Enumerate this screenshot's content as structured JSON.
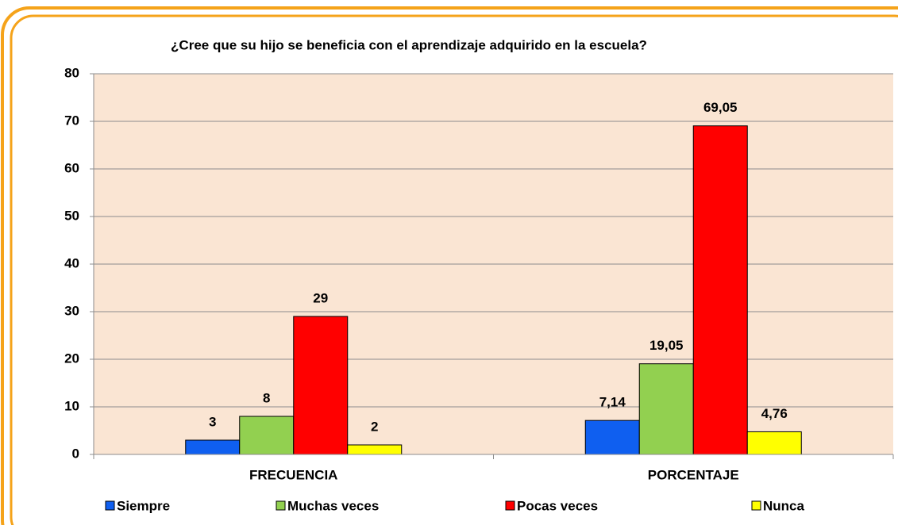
{
  "chart_data": {
    "type": "bar",
    "title": "¿Cree que su hijo se beneficia con el aprendizaje  adquirido en la escuela?",
    "categories": [
      "FRECUENCIA",
      "PORCENTAJE"
    ],
    "series": [
      {
        "name": "Siempre",
        "color": "#0f5ff0",
        "values": [
          3,
          7.14
        ],
        "value_labels": [
          "3",
          "7,14"
        ]
      },
      {
        "name": "Muchas veces",
        "color": "#92d050",
        "values": [
          8,
          19.05
        ],
        "value_labels": [
          "8",
          "19,05"
        ]
      },
      {
        "name": "Pocas veces",
        "color": "#ff0000",
        "values": [
          29,
          69.05
        ],
        "value_labels": [
          "29",
          "69,05"
        ]
      },
      {
        "name": "Nunca",
        "color": "#ffff00",
        "values": [
          2,
          4.76
        ],
        "value_labels": [
          "2",
          "4,76"
        ]
      }
    ],
    "ylim": [
      0,
      80
    ],
    "yticks": [
      0,
      10,
      20,
      30,
      40,
      50,
      60,
      70,
      80
    ],
    "grid": true,
    "legend": "bottom"
  }
}
